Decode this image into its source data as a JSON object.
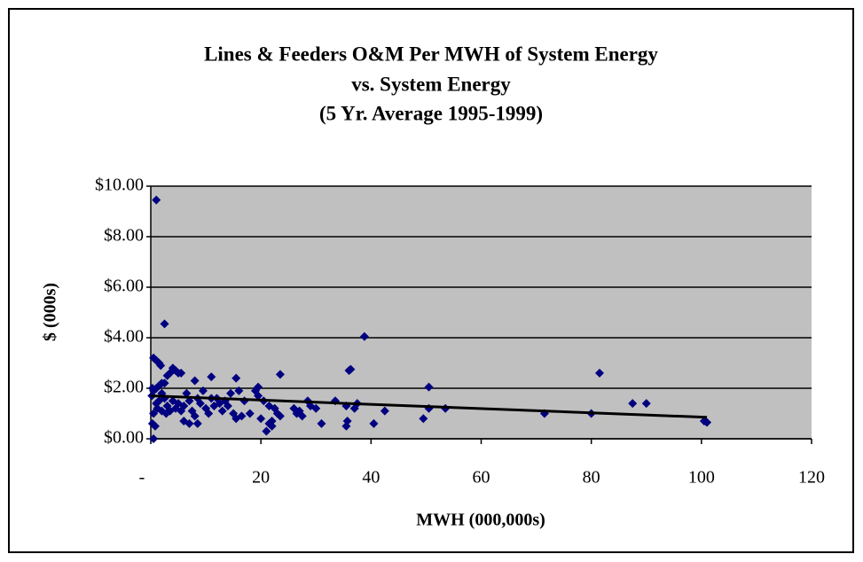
{
  "chart_data": {
    "type": "scatter",
    "title": [
      "Lines & Feeders O&M Per MWH of System Energy",
      "vs. System Energy",
      "(5 Yr. Average 1995-1999)"
    ],
    "x_label": "MWH (000,000s)",
    "y_label": "$ (000s)",
    "xlim": [
      0,
      120
    ],
    "xticks": [
      {
        "value": 0,
        "label": "-"
      },
      20,
      40,
      60,
      80,
      100,
      120
    ],
    "ylim": [
      0,
      10
    ],
    "yticks": [
      {
        "value": 0,
        "label": "$0.00"
      },
      {
        "value": 2,
        "label": "$2.00"
      },
      {
        "value": 4,
        "label": "$4.00"
      },
      {
        "value": 6,
        "label": "$6.00"
      },
      {
        "value": 8,
        "label": "$8.00"
      },
      {
        "value": 10,
        "label": "$10.00"
      }
    ],
    "grid": true,
    "color": "#000080",
    "x": [
      1,
      2.5,
      38.8,
      81.5,
      87.5,
      90,
      101,
      100.5,
      80,
      71.5,
      53.5,
      50.5,
      50.5,
      49.5,
      42.5,
      40.5,
      36,
      36.3,
      37.5,
      37,
      35.5,
      35.5,
      35.7,
      33.5,
      31,
      30,
      29,
      28.5,
      27.5,
      27,
      26.5,
      26,
      23.5,
      23.5,
      23,
      22.5,
      22,
      22,
      21.5,
      21,
      21.5,
      20.5,
      20,
      19.5,
      19.5,
      19,
      18,
      17,
      16.5,
      16,
      15.5,
      15.5,
      15,
      14.5,
      14,
      13.5,
      13,
      12.5,
      12,
      11.5,
      11,
      11,
      10.5,
      10,
      9.5,
      9,
      8.5,
      8.5,
      8,
      8,
      7.5,
      7,
      7,
      6.5,
      6,
      6,
      5.5,
      5.5,
      5,
      5,
      4.5,
      4.5,
      4,
      4,
      3.5,
      3.5,
      3,
      3,
      2.8,
      2.5,
      2.5,
      2,
      2,
      2,
      1.8,
      1.5,
      1.5,
      1.5,
      1.2,
      1,
      1,
      1,
      0.8,
      0.5,
      0.5,
      0.5,
      0.5,
      0.3,
      0.3,
      0.2
    ],
    "values": [
      9.45,
      4.55,
      4.05,
      2.6,
      1.4,
      1.4,
      0.65,
      0.7,
      1.0,
      1.0,
      1.2,
      2.05,
      1.2,
      0.8,
      1.1,
      0.6,
      2.7,
      2.75,
      1.4,
      1.2,
      1.3,
      0.5,
      0.7,
      1.5,
      0.6,
      1.2,
      1.3,
      1.5,
      0.9,
      1.1,
      1.0,
      1.2,
      2.55,
      0.9,
      1.0,
      1.2,
      0.5,
      0.7,
      0.6,
      0.3,
      1.3,
      1.5,
      0.8,
      2.05,
      1.7,
      1.9,
      1.0,
      1.5,
      0.9,
      1.9,
      2.4,
      0.8,
      1.0,
      1.8,
      1.3,
      1.5,
      1.1,
      1.4,
      1.6,
      1.3,
      1.6,
      2.45,
      1.0,
      1.2,
      1.9,
      1.4,
      1.6,
      0.6,
      2.3,
      0.9,
      1.1,
      0.6,
      1.5,
      1.8,
      1.3,
      0.7,
      2.6,
      1.1,
      1.4,
      2.6,
      2.7,
      1.2,
      2.8,
      1.5,
      2.6,
      1.1,
      2.5,
      1.3,
      1.0,
      2.2,
      1.6,
      2.2,
      1.8,
      1.1,
      2.9,
      3.0,
      2.1,
      1.5,
      1.2,
      3.1,
      2.0,
      1.4,
      0.5,
      3.2,
      1.9,
      1.0,
      0.0,
      2.0,
      0.6,
      1.7
    ],
    "trendline": {
      "x": [
        0,
        101
      ],
      "y": [
        1.7,
        0.85
      ]
    }
  }
}
